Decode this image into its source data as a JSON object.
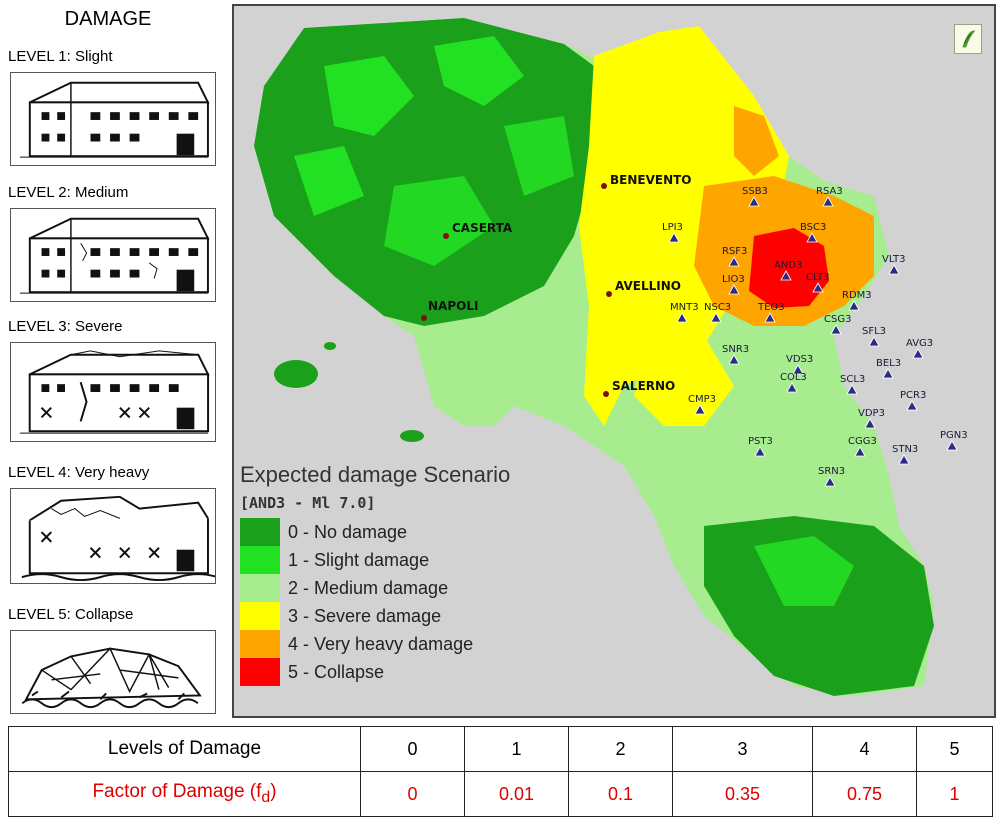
{
  "sidebar": {
    "title": "DAMAGE",
    "levels": [
      {
        "label": "LEVEL 1: Slight"
      },
      {
        "label": "LEVEL 2: Medium"
      },
      {
        "label": "LEVEL 3: Severe"
      },
      {
        "label": "LEVEL 4: Very heavy"
      },
      {
        "label": "LEVEL 5: Collapse"
      }
    ]
  },
  "map": {
    "legend": {
      "title": "Expected damage Scenario",
      "subtitle": "[AND3 - Ml 7.0]",
      "items": [
        {
          "label": "0 - No damage",
          "color": "#1aa01a"
        },
        {
          "label": "1 - Slight damage",
          "color": "#22e022"
        },
        {
          "label": "2 - Medium damage",
          "color": "#a8ec90"
        },
        {
          "label": "3 - Severe damage",
          "color": "#ffff00"
        },
        {
          "label": "4 - Very heavy damage",
          "color": "#ffa500"
        },
        {
          "label": "5 - Collapse",
          "color": "#ff0000"
        }
      ]
    },
    "cities": [
      {
        "name": "BENEVENTO"
      },
      {
        "name": "CASERTA"
      },
      {
        "name": "AVELLINO"
      },
      {
        "name": "NAPOLI"
      },
      {
        "name": "SALERNO"
      }
    ],
    "stations": [
      {
        "name": "SSB3"
      },
      {
        "name": "RSA3"
      },
      {
        "name": "LPI3"
      },
      {
        "name": "BSC3"
      },
      {
        "name": "RSF3"
      },
      {
        "name": "AND3"
      },
      {
        "name": "VLT3"
      },
      {
        "name": "LIO3"
      },
      {
        "name": "CLT3"
      },
      {
        "name": "RDM3"
      },
      {
        "name": "MNT3"
      },
      {
        "name": "NSC3"
      },
      {
        "name": "TEO3"
      },
      {
        "name": "CSG3"
      },
      {
        "name": "SFL3"
      },
      {
        "name": "AVG3"
      },
      {
        "name": "SNR3"
      },
      {
        "name": "VDS3"
      },
      {
        "name": "BEL3"
      },
      {
        "name": "COL3"
      },
      {
        "name": "SCL3"
      },
      {
        "name": "CMP3"
      },
      {
        "name": "PCR3"
      },
      {
        "name": "VDP3"
      },
      {
        "name": "PST3"
      },
      {
        "name": "CGG3"
      },
      {
        "name": "STN3"
      },
      {
        "name": "PGN3"
      },
      {
        "name": "SRN3"
      }
    ]
  },
  "table": {
    "row1_header": "Levels of Damage",
    "levels": [
      "0",
      "1",
      "2",
      "3",
      "4",
      "5"
    ],
    "row2_header": "Factor of Damage (f",
    "row2_header_sub": "d",
    "row2_header_close": ")",
    "factors": [
      "0",
      "0.01",
      "0.1",
      "0.35",
      "0.75",
      "1"
    ]
  }
}
